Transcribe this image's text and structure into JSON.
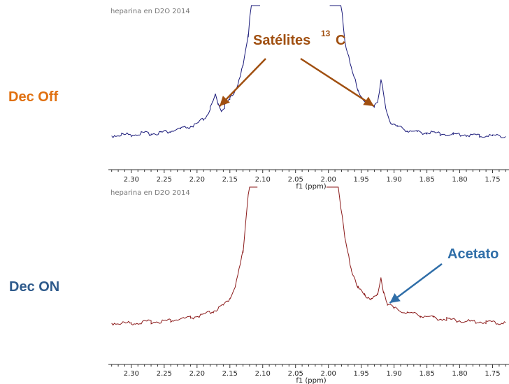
{
  "chart_data": [
    {
      "type": "line",
      "caption": "heparina  en D2O  2014",
      "side_label": "Dec Off",
      "xlabel": "f1 (ppm)",
      "ticks": [
        "2.30",
        "2.25",
        "2.20",
        "2.15",
        "2.10",
        "2.05",
        "2.00",
        "1.95",
        "1.90",
        "1.85",
        "1.80",
        "1.75"
      ],
      "xlim": [
        2.335,
        1.725
      ],
      "x_reversed": true,
      "series": [
        {
          "color": "#1a1a7a",
          "points": [
            [
              2.33,
              0.21
            ],
            [
              2.315,
              0.22
            ],
            [
              2.3,
              0.22
            ],
            [
              2.285,
              0.23
            ],
            [
              2.27,
              0.23
            ],
            [
              2.255,
              0.24
            ],
            [
              2.24,
              0.25
            ],
            [
              2.225,
              0.27
            ],
            [
              2.21,
              0.29
            ],
            [
              2.2,
              0.31
            ],
            [
              2.19,
              0.36
            ],
            [
              2.185,
              0.39
            ],
            [
              2.18,
              0.45
            ],
            [
              2.176,
              0.5
            ],
            [
              2.172,
              0.57
            ],
            [
              2.168,
              0.5
            ],
            [
              2.163,
              0.44
            ],
            [
              2.158,
              0.47
            ],
            [
              2.15,
              0.53
            ],
            [
              2.14,
              0.64
            ],
            [
              2.13,
              0.82
            ],
            [
              2.122,
              1.1
            ],
            [
              2.115,
              1.6
            ],
            [
              2.11,
              2.6
            ],
            [
              2.107,
              4.0
            ],
            [
              2.104,
              6.0
            ],
            [
              1.998,
              6.0
            ],
            [
              1.995,
              4.0
            ],
            [
              1.99,
              2.6
            ],
            [
              1.985,
              1.7
            ],
            [
              1.975,
              1.05
            ],
            [
              1.965,
              0.8
            ],
            [
              1.955,
              0.62
            ],
            [
              1.945,
              0.51
            ],
            [
              1.938,
              0.48
            ],
            [
              1.93,
              0.48
            ],
            [
              1.925,
              0.52
            ],
            [
              1.92,
              0.7
            ],
            [
              1.917,
              0.62
            ],
            [
              1.913,
              0.45
            ],
            [
              1.905,
              0.33
            ],
            [
              1.895,
              0.29
            ],
            [
              1.88,
              0.26
            ],
            [
              1.865,
              0.24
            ],
            [
              1.85,
              0.24
            ],
            [
              1.83,
              0.23
            ],
            [
              1.81,
              0.22
            ],
            [
              1.79,
              0.22
            ],
            [
              1.77,
              0.21
            ],
            [
              1.75,
              0.21
            ],
            [
              1.73,
              0.21
            ]
          ]
        }
      ],
      "annotations": [
        {
          "text": "Satélites",
          "superscript": "13",
          "suffix": "C",
          "color": "#a04f10",
          "arrows_to_ppm": [
            2.172,
            1.92
          ]
        }
      ]
    },
    {
      "type": "line",
      "caption": "heparina  en D2O  2014",
      "side_label": "Dec ON",
      "xlabel": "f1 (ppm)",
      "ticks": [
        "2.30",
        "2.25",
        "2.20",
        "2.15",
        "2.10",
        "2.05",
        "2.00",
        "1.95",
        "1.90",
        "1.85",
        "1.80",
        "1.75"
      ],
      "xlim": [
        2.335,
        1.725
      ],
      "x_reversed": true,
      "series": [
        {
          "color": "#8b1a1a",
          "points": [
            [
              2.33,
              0.21
            ],
            [
              2.3,
              0.21
            ],
            [
              2.27,
              0.22
            ],
            [
              2.24,
              0.23
            ],
            [
              2.21,
              0.25
            ],
            [
              2.19,
              0.27
            ],
            [
              2.175,
              0.3
            ],
            [
              2.16,
              0.34
            ],
            [
              2.15,
              0.4
            ],
            [
              2.14,
              0.52
            ],
            [
              2.13,
              0.75
            ],
            [
              2.122,
              1.2
            ],
            [
              2.116,
              1.9
            ],
            [
              2.111,
              3.2
            ],
            [
              2.108,
              6.0
            ],
            [
              2.003,
              6.0
            ],
            [
              1.998,
              3.0
            ],
            [
              1.993,
              1.9
            ],
            [
              1.985,
              1.25
            ],
            [
              1.975,
              0.85
            ],
            [
              1.965,
              0.62
            ],
            [
              1.955,
              0.48
            ],
            [
              1.945,
              0.42
            ],
            [
              1.935,
              0.4
            ],
            [
              1.925,
              0.42
            ],
            [
              1.92,
              0.55
            ],
            [
              1.916,
              0.45
            ],
            [
              1.91,
              0.36
            ],
            [
              1.9,
              0.32
            ],
            [
              1.88,
              0.29
            ],
            [
              1.86,
              0.27
            ],
            [
              1.84,
              0.25
            ],
            [
              1.82,
              0.24
            ],
            [
              1.8,
              0.23
            ],
            [
              1.78,
              0.22
            ],
            [
              1.76,
              0.22
            ],
            [
              1.74,
              0.21
            ],
            [
              1.73,
              0.21
            ]
          ]
        }
      ],
      "annotations": [
        {
          "text": "Acetato",
          "color": "#2f6ea8",
          "arrow_to_ppm": 1.913
        }
      ]
    }
  ],
  "colors": {
    "dec_off_label": "#e07010",
    "dec_on_label": "#2f5b8c"
  }
}
